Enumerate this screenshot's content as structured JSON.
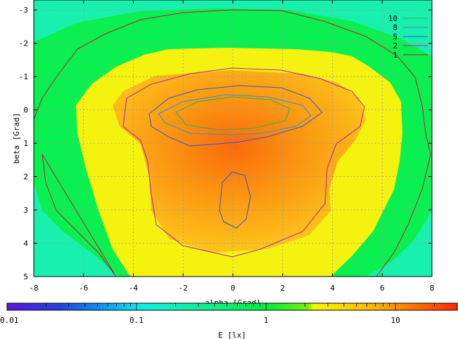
{
  "chart_data": {
    "type": "heatmap",
    "title": "",
    "xlabel": "alpha [Grad]",
    "ylabel": "beta [Grad]",
    "xlim": [
      -8,
      8
    ],
    "ylim": [
      -3.3,
      5
    ],
    "y_inverted": true,
    "grid": true,
    "x_ticks": [
      "-8",
      "-6",
      "-4",
      "-2",
      "0",
      "2",
      "4",
      "6",
      "8"
    ],
    "y_ticks": [
      "-3",
      "-2",
      "-1",
      "0",
      "1",
      "2",
      "3",
      "4",
      "5"
    ],
    "x_tick_values": [
      -8,
      -6,
      -4,
      -2,
      0,
      2,
      4,
      6,
      8
    ],
    "y_tick_values": [
      -3,
      -2,
      -1,
      0,
      1,
      2,
      3,
      4,
      5
    ],
    "colorbar": {
      "label": "E [lx]",
      "scale": "log",
      "range": [
        0.01,
        30
      ],
      "ticks": [
        "0.01",
        "0.1",
        "1",
        "10"
      ],
      "tick_values": [
        0.01,
        0.1,
        1,
        10
      ]
    },
    "contour_levels": [
      {
        "name": "10",
        "value": 10,
        "color": "#22b35a"
      },
      {
        "name": "8",
        "value": 8,
        "color": "#3a8fd0"
      },
      {
        "name": "5",
        "value": 5,
        "color": "#3a50d0"
      },
      {
        "name": "2",
        "value": 2,
        "color": "#b020b0"
      },
      {
        "name": "1",
        "value": 1,
        "color": "#b02030"
      }
    ],
    "legend_position": "top-right"
  }
}
